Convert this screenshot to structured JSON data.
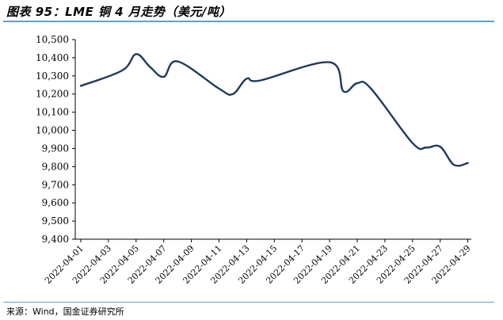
{
  "header": {
    "title": "图表 95：LME 铜 4 月走势（美元/吨）"
  },
  "footer": {
    "source": "来源：Wind，国金证券研究所"
  },
  "chart_data": {
    "type": "line",
    "title": "图表 95：LME 铜 4 月走势（美元/吨）",
    "xlabel": "",
    "ylabel": "",
    "ylim": [
      9400,
      10500
    ],
    "yticks": [
      "9,400",
      "9,500",
      "9,600",
      "9,700",
      "9,800",
      "9,900",
      "10,000",
      "10,100",
      "10,200",
      "10,300",
      "10,400",
      "10,500"
    ],
    "ytick_values": [
      9400,
      9500,
      9600,
      9700,
      9800,
      9900,
      10000,
      10100,
      10200,
      10300,
      10400,
      10500
    ],
    "xticks": [
      "2022-04-01",
      "2022-04-03",
      "2022-04-05",
      "2022-04-07",
      "2022-04-09",
      "2022-04-11",
      "2022-04-13",
      "2022-04-15",
      "2022-04-17",
      "2022-04-19",
      "2022-04-21",
      "2022-04-23",
      "2022-04-25",
      "2022-04-27",
      "2022-04-29"
    ],
    "grid": false,
    "legend": "none",
    "line_color": "#1f3a5f",
    "series": [
      {
        "x": [
          "2022-04-01",
          "2022-04-04",
          "2022-04-05",
          "2022-04-06",
          "2022-04-07",
          "2022-04-08",
          "2022-04-11",
          "2022-04-12",
          "2022-04-13",
          "2022-04-14",
          "2022-04-19",
          "2022-04-20",
          "2022-04-21",
          "2022-04-22",
          "2022-04-25",
          "2022-04-26",
          "2022-04-27",
          "2022-04-28",
          "2022-04-29"
        ],
        "values": [
          10245,
          10330,
          10420,
          10350,
          10295,
          10380,
          10230,
          10200,
          10285,
          10275,
          10375,
          10215,
          10260,
          10230,
          9930,
          9905,
          9910,
          9810,
          9820
        ]
      }
    ]
  }
}
